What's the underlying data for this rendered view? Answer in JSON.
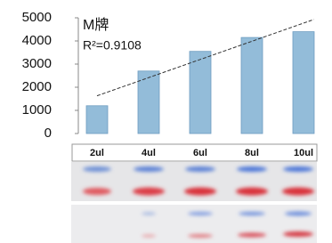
{
  "chart_data": {
    "type": "bar",
    "title": "M牌",
    "annotation": "R²=0.9108",
    "categories": [
      "2ul",
      "4ul",
      "6ul",
      "8ul",
      "10ul"
    ],
    "values": [
      1200,
      2700,
      3550,
      4150,
      4400
    ],
    "color": "#93bcd9",
    "trendline": "linear",
    "ylim": [
      0,
      5000
    ],
    "yticks": [
      0,
      1000,
      2000,
      3000,
      4000,
      5000
    ]
  }
}
